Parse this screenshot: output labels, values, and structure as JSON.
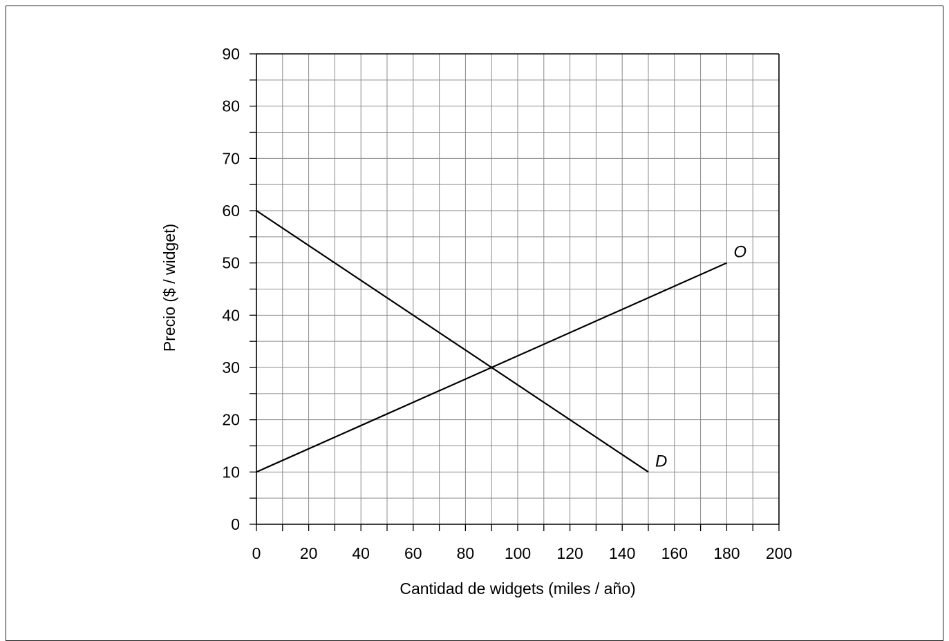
{
  "chart_data": {
    "type": "line",
    "title": "",
    "xlabel": "Cantidad de widgets (miles / año)",
    "ylabel": "Precio ($ / widget)",
    "xlim": [
      0,
      200
    ],
    "ylim": [
      0,
      90
    ],
    "x_ticks": [
      0,
      20,
      40,
      60,
      80,
      100,
      120,
      140,
      160,
      180,
      200
    ],
    "y_ticks": [
      0,
      10,
      20,
      30,
      40,
      50,
      60,
      70,
      80,
      90
    ],
    "grid": true,
    "x_minor_step": 10,
    "y_minor_step": 5,
    "series": [
      {
        "name": "O",
        "points": [
          [
            0,
            10
          ],
          [
            180,
            50
          ]
        ]
      },
      {
        "name": "D",
        "points": [
          [
            0,
            60
          ],
          [
            150,
            10
          ]
        ]
      }
    ]
  }
}
